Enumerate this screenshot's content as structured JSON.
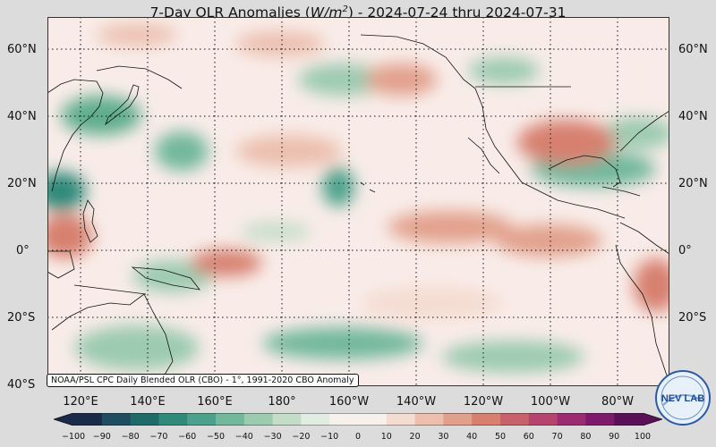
{
  "title": {
    "prefix": "7-Day OLR Anomalies (",
    "unit_base": "W/m",
    "unit_exp": "2",
    "suffix": ") - 2024-07-24 thru 2024-07-31"
  },
  "lat_labels": [
    "60°N",
    "40°N",
    "20°N",
    "0°",
    "20°S",
    "40°S"
  ],
  "lon_labels": [
    "120°E",
    "140°E",
    "160°E",
    "180°",
    "160°W",
    "140°W",
    "120°W",
    "100°W",
    "80°W"
  ],
  "source_note": "NOAA/PSL CPC Daily Blended OLR (CBO) - 1°, 1991-2020 CBO Anomaly",
  "colorbar": {
    "ticks": [
      "−100",
      "−90",
      "−80",
      "−70",
      "−60",
      "−50",
      "−40",
      "−30",
      "−20",
      "−10",
      "0",
      "10",
      "20",
      "30",
      "40",
      "50",
      "60",
      "70",
      "80",
      "90",
      "100"
    ],
    "colors": [
      "#1b2a4a",
      "#1d4d5e",
      "#1f6b6a",
      "#2f8a7a",
      "#4ba18b",
      "#72b89d",
      "#9ccbb0",
      "#c3ddc8",
      "#e2ede2",
      "#f7f1ee",
      "#f7f1ee",
      "#f4dcd2",
      "#ecbfae",
      "#e2a08c",
      "#d7806f",
      "#c8626a",
      "#b5456f",
      "#9b2c72",
      "#7d1a6c",
      "#5a0f56"
    ]
  },
  "logo_text": "NEV LAB",
  "colors": {
    "background": "#dcdcdc",
    "ocean_base": "#f9ece8",
    "positive": "#d98a74",
    "negative": "#5fae8c"
  }
}
